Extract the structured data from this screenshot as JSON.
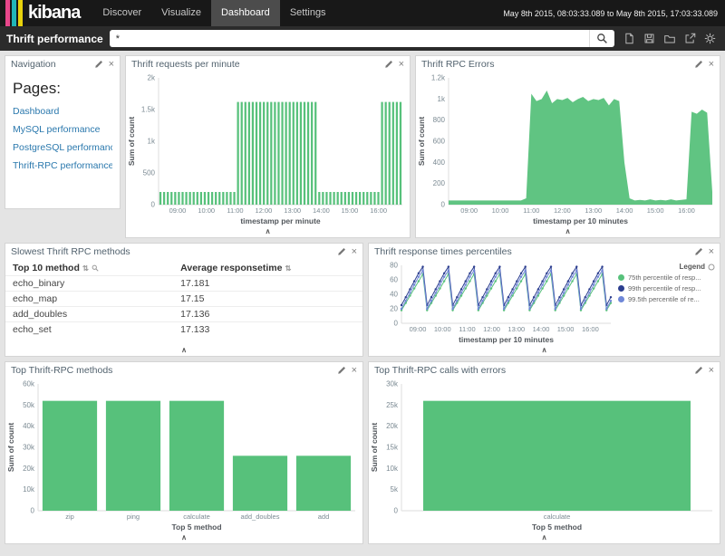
{
  "app": {
    "logo_text": "kibana",
    "logo_stripes": [
      "#e8478b",
      "#20b6b8",
      "#e8d20c"
    ],
    "accent_green": "#57c17b"
  },
  "nav": {
    "items": [
      {
        "label": "Discover"
      },
      {
        "label": "Visualize"
      },
      {
        "label": "Dashboard"
      },
      {
        "label": "Settings"
      }
    ],
    "active_item": "Dashboard",
    "date_range": "May 8th 2015, 08:03:33.089 to May 8th 2015, 17:03:33.089"
  },
  "querybar": {
    "title": "Thrift performance",
    "query": "*"
  },
  "icons": {
    "close_glyph": "×",
    "collapse_glyph": "∧",
    "sort_glyph": "⇅",
    "edit": "pencil-icon",
    "search": "magnifier-icon",
    "toolbar": [
      "new-document-icon",
      "save-icon",
      "open-folder-icon",
      "share-icon",
      "gear-icon"
    ]
  },
  "panels": {
    "navigation": {
      "title": "Navigation",
      "heading": "Pages:",
      "links": [
        "Dashboard",
        "MySQL performance",
        "PostgreSQL performance",
        "Thrift-RPC performance"
      ]
    },
    "requests": {
      "title": "Thrift requests per minute"
    },
    "errors": {
      "title": "Thrift RPC Errors"
    },
    "slowest": {
      "title": "Slowest Thrift RPC methods"
    },
    "percentiles": {
      "title": "Thrift response times percentiles",
      "legend_title": "Legend"
    },
    "top_methods": {
      "title": "Top Thrift-RPC methods"
    },
    "top_errors": {
      "title": "Top Thrift-RPC calls with errors"
    }
  },
  "chart_data": [
    {
      "id": "requests_per_minute",
      "type": "bar",
      "title": "Thrift requests per minute",
      "ylabel": "Sum of count",
      "xlabel": "timestamp per minute",
      "ylim": [
        0,
        2000
      ],
      "yticks": [
        {
          "v": 0,
          "label": "0"
        },
        {
          "v": 500,
          "label": "500"
        },
        {
          "v": 1000,
          "label": "1k"
        },
        {
          "v": 1500,
          "label": "1.5k"
        },
        {
          "v": 2000,
          "label": "2k"
        }
      ],
      "xticks": [
        {
          "p": 0.078,
          "label": "09:00"
        },
        {
          "p": 0.196,
          "label": "10:00"
        },
        {
          "p": 0.314,
          "label": "11:00"
        },
        {
          "p": 0.431,
          "label": "12:00"
        },
        {
          "p": 0.549,
          "label": "13:00"
        },
        {
          "p": 0.667,
          "label": "14:00"
        },
        {
          "p": 0.784,
          "label": "15:00"
        },
        {
          "p": 0.902,
          "label": "16:00"
        }
      ],
      "color": "#57c17b",
      "values": [
        200,
        200,
        200,
        200,
        200,
        200,
        200,
        200,
        200,
        200,
        200,
        200,
        200,
        200,
        200,
        200,
        200,
        200,
        200,
        200,
        200,
        1620,
        1620,
        1620,
        1620,
        1620,
        1620,
        1620,
        1620,
        1620,
        1620,
        1620,
        1620,
        1620,
        1620,
        1620,
        1620,
        1620,
        1620,
        1620,
        1620,
        1620,
        1620,
        200,
        200,
        200,
        200,
        200,
        200,
        200,
        200,
        200,
        200,
        200,
        200,
        200,
        200,
        200,
        200,
        200,
        1620,
        1620,
        1620,
        1620,
        1620,
        1620
      ]
    },
    {
      "id": "rpc_errors",
      "type": "area",
      "title": "Thrift RPC Errors",
      "ylabel": "Sum of count",
      "xlabel": "timestamp per 10 minutes",
      "ylim": [
        0,
        1200
      ],
      "yticks": [
        {
          "v": 0,
          "label": "0"
        },
        {
          "v": 200,
          "label": "200"
        },
        {
          "v": 400,
          "label": "400"
        },
        {
          "v": 600,
          "label": "600"
        },
        {
          "v": 800,
          "label": "800"
        },
        {
          "v": 1000,
          "label": "1k"
        },
        {
          "v": 1200,
          "label": "1.2k"
        }
      ],
      "xticks": [
        {
          "p": 0.078,
          "label": "09:00"
        },
        {
          "p": 0.196,
          "label": "10:00"
        },
        {
          "p": 0.314,
          "label": "11:00"
        },
        {
          "p": 0.431,
          "label": "12:00"
        },
        {
          "p": 0.549,
          "label": "13:00"
        },
        {
          "p": 0.667,
          "label": "14:00"
        },
        {
          "p": 0.784,
          "label": "15:00"
        },
        {
          "p": 0.902,
          "label": "16:00"
        }
      ],
      "color": "#57c17b",
      "values": [
        40,
        40,
        40,
        40,
        40,
        40,
        40,
        40,
        40,
        40,
        40,
        40,
        40,
        40,
        40,
        60,
        1050,
        980,
        1000,
        1080,
        960,
        1000,
        990,
        1010,
        970,
        1000,
        1020,
        980,
        1000,
        990,
        1010,
        940,
        1000,
        980,
        400,
        60,
        40,
        45,
        40,
        50,
        40,
        45,
        40,
        50,
        40,
        45,
        50,
        880,
        860,
        900,
        870,
        120
      ]
    },
    {
      "id": "slowest_table",
      "type": "table",
      "title": "Slowest Thrift RPC methods",
      "columns": [
        "Top 10 method",
        "Average responsetime"
      ],
      "rows": [
        [
          "echo_binary",
          "17.181"
        ],
        [
          "echo_map",
          "17.15"
        ],
        [
          "add_doubles",
          "17.136"
        ],
        [
          "echo_set",
          "17.133"
        ]
      ]
    },
    {
      "id": "percentiles",
      "type": "line",
      "title": "Thrift response times percentiles",
      "xlabel": "timestamp per 10 minutes",
      "ylim": [
        0,
        80
      ],
      "yticks": [
        {
          "v": 0,
          "label": "0"
        },
        {
          "v": 20,
          "label": "20"
        },
        {
          "v": 40,
          "label": "40"
        },
        {
          "v": 60,
          "label": "60"
        },
        {
          "v": 80,
          "label": "80"
        }
      ],
      "xticks": [
        {
          "p": 0.078,
          "label": "09:00"
        },
        {
          "p": 0.196,
          "label": "10:00"
        },
        {
          "p": 0.314,
          "label": "11:00"
        },
        {
          "p": 0.431,
          "label": "12:00"
        },
        {
          "p": 0.549,
          "label": "13:00"
        },
        {
          "p": 0.667,
          "label": "14:00"
        },
        {
          "p": 0.784,
          "label": "15:00"
        },
        {
          "p": 0.902,
          "label": "16:00"
        }
      ],
      "legend_position": "right",
      "series": [
        {
          "label": "75th percentile of resp...",
          "color": "#57c17b",
          "values": [
            18,
            28,
            38,
            48,
            58,
            68,
            18,
            28,
            38,
            48,
            58,
            68,
            18,
            28,
            38,
            48,
            58,
            68,
            18,
            28,
            38,
            48,
            58,
            68,
            18,
            28,
            38,
            48,
            58,
            68,
            18,
            28,
            38,
            48,
            58,
            68,
            18,
            28,
            38,
            48,
            58,
            68,
            18,
            28,
            38,
            48,
            58,
            68,
            18,
            28
          ]
        },
        {
          "label": "99th percentile of resp...",
          "color": "#2c3e8f",
          "values": [
            25,
            36,
            47,
            58,
            69,
            78,
            25,
            36,
            47,
            58,
            69,
            78,
            25,
            36,
            47,
            58,
            69,
            78,
            25,
            36,
            47,
            58,
            69,
            78,
            25,
            36,
            47,
            58,
            69,
            78,
            25,
            36,
            47,
            58,
            69,
            78,
            25,
            36,
            47,
            58,
            69,
            78,
            25,
            36,
            47,
            58,
            69,
            78,
            25,
            36
          ]
        },
        {
          "label": "99.5th percentile of re...",
          "color": "#6f87d8",
          "values": [
            20,
            31,
            42,
            53,
            64,
            73,
            20,
            31,
            42,
            53,
            64,
            73,
            20,
            31,
            42,
            53,
            64,
            73,
            20,
            31,
            42,
            53,
            64,
            73,
            20,
            31,
            42,
            53,
            64,
            73,
            20,
            31,
            42,
            53,
            64,
            73,
            20,
            31,
            42,
            53,
            64,
            73,
            20,
            31,
            42,
            53,
            64,
            73,
            20,
            31
          ]
        }
      ]
    },
    {
      "id": "top_methods",
      "type": "bar",
      "title": "Top Thrift-RPC methods",
      "ylabel": "Sum of count",
      "xlabel": "Top 5 method",
      "ylim": [
        0,
        60000
      ],
      "yticks": [
        {
          "v": 0,
          "label": "0"
        },
        {
          "v": 10000,
          "label": "10k"
        },
        {
          "v": 20000,
          "label": "20k"
        },
        {
          "v": 30000,
          "label": "30k"
        },
        {
          "v": 40000,
          "label": "40k"
        },
        {
          "v": 50000,
          "label": "50k"
        },
        {
          "v": 60000,
          "label": "60k"
        }
      ],
      "categories": [
        "zip",
        "ping",
        "calculate",
        "add_doubles",
        "add"
      ],
      "values": [
        52000,
        52000,
        52000,
        26000,
        26000
      ],
      "color": "#57c17b"
    },
    {
      "id": "top_errors",
      "type": "bar",
      "title": "Top Thrift-RPC calls with errors",
      "ylabel": "Sum of count",
      "xlabel": "Top 5 method",
      "ylim": [
        0,
        30000
      ],
      "yticks": [
        {
          "v": 0,
          "label": "0"
        },
        {
          "v": 5000,
          "label": "5k"
        },
        {
          "v": 10000,
          "label": "10k"
        },
        {
          "v": 15000,
          "label": "15k"
        },
        {
          "v": 20000,
          "label": "20k"
        },
        {
          "v": 25000,
          "label": "25k"
        },
        {
          "v": 30000,
          "label": "30k"
        }
      ],
      "categories": [
        "calculate"
      ],
      "values": [
        26000
      ],
      "color": "#57c17b"
    }
  ]
}
